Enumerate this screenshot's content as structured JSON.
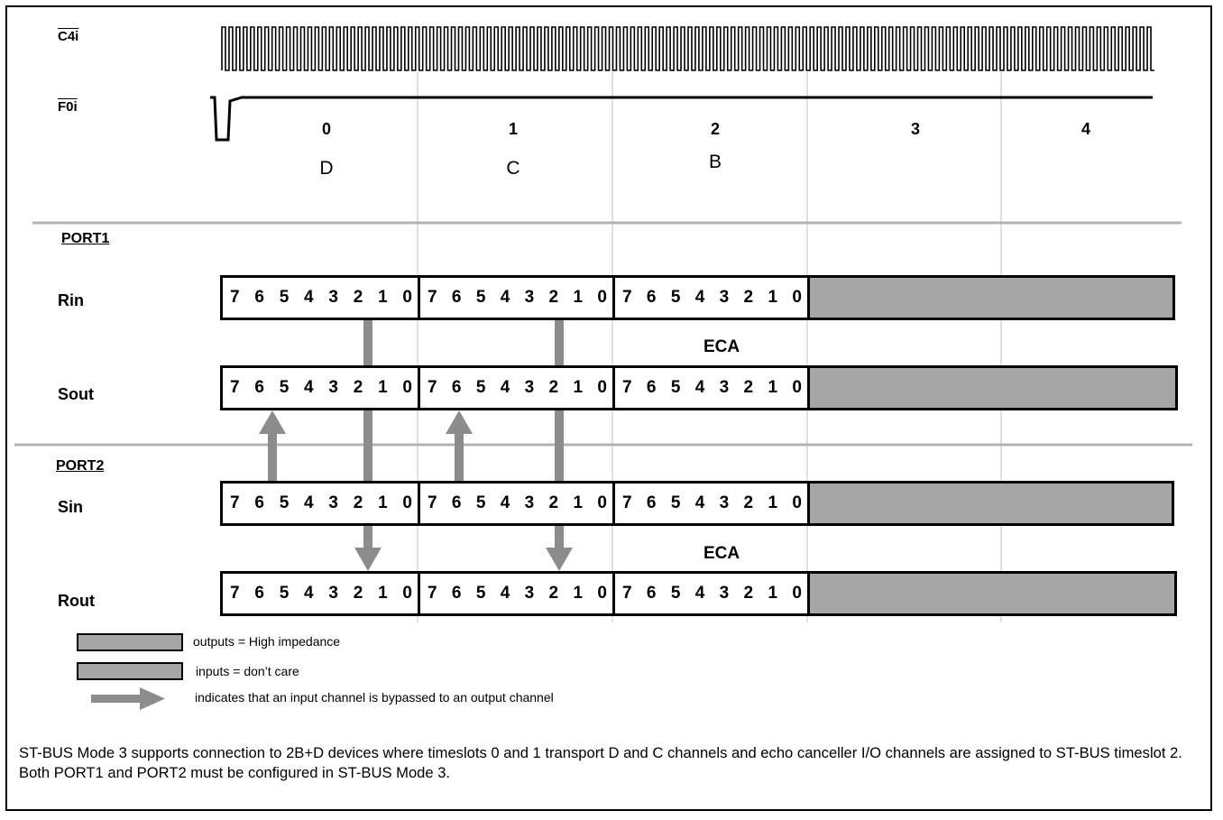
{
  "signals": {
    "clock": "C4i",
    "frame": "F0i"
  },
  "timeslots": [
    {
      "number": "0",
      "channel": "D"
    },
    {
      "number": "1",
      "channel": "C"
    },
    {
      "number": "2",
      "channel": "B"
    },
    {
      "number": "3",
      "channel": ""
    },
    {
      "number": "4",
      "channel": ""
    }
  ],
  "ports": [
    {
      "label": "PORT1",
      "rows": [
        {
          "label": "Rin"
        },
        {
          "label": "Sout"
        }
      ]
    },
    {
      "label": "PORT2",
      "rows": [
        {
          "label": "Sin"
        },
        {
          "label": "Rout"
        }
      ]
    }
  ],
  "bits": [
    "7",
    "6",
    "5",
    "4",
    "3",
    "2",
    "1",
    "0"
  ],
  "eca_label": "ECA",
  "legend": {
    "high_impedance": "outputs = High impedance",
    "dont_care": "inputs = don’t care",
    "bypass": "indicates that an input channel is bypassed to an output channel"
  },
  "caption": "ST-BUS Mode 3 supports connection to 2B+D devices where timeslots 0 and 1 transport D and C channels and echo canceller I/O channels are assigned to ST-BUS timeslot 2. Both PORT1 and PORT2 must be configured in ST-BUS Mode 3.",
  "colors": {
    "shade": "#a6a6a6",
    "arrow": "#8c8c8c",
    "divider": "#b3b3b3",
    "gridline": "#c0c0c0"
  }
}
